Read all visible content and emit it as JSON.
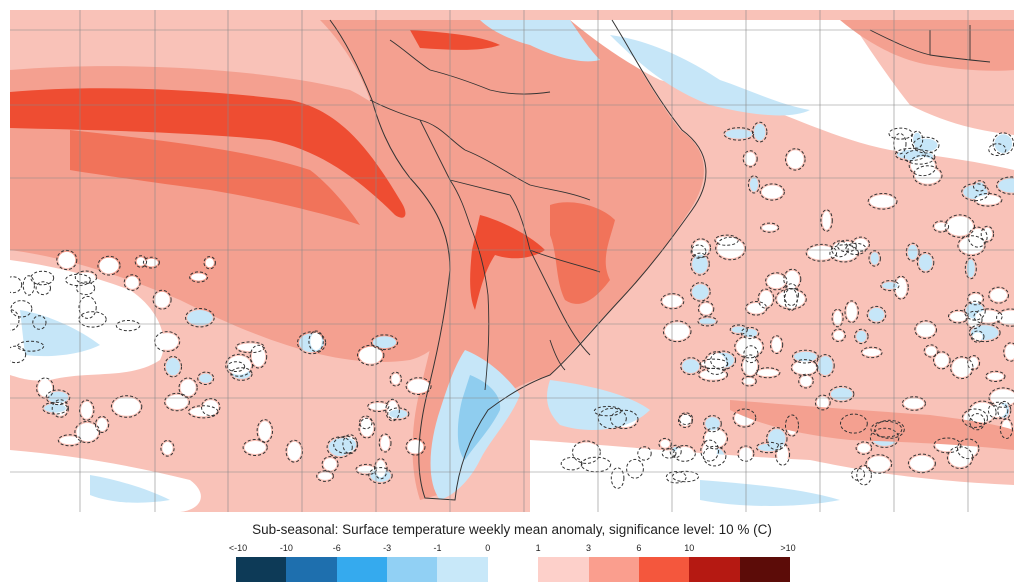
{
  "caption": "Sub-seasonal: Surface temperature weekly mean anomaly, significance level: 10 % (C)",
  "legend": {
    "labels": [
      "<-10",
      "-10",
      "-6",
      "-3",
      "-1",
      "0",
      "1",
      "3",
      "6",
      "10",
      ">10"
    ],
    "colors": [
      "#0d3a57",
      "#1e6fae",
      "#35aaee",
      "#91d0f4",
      "#c8e8f9",
      "#ffffff",
      "#fdd0ca",
      "#fa9e8e",
      "#f4573d",
      "#b51912",
      "#5c0c08"
    ]
  },
  "map_colors": {
    "ocean_base": "#f9c2b8",
    "warm": "#f4a090",
    "warmer": "#f1735a",
    "hot": "#ee4d32",
    "cool": "#c6e6f8",
    "cold": "#8fcdef",
    "neutral": "#ffffff",
    "grid": "#888888",
    "border": "#333333"
  }
}
